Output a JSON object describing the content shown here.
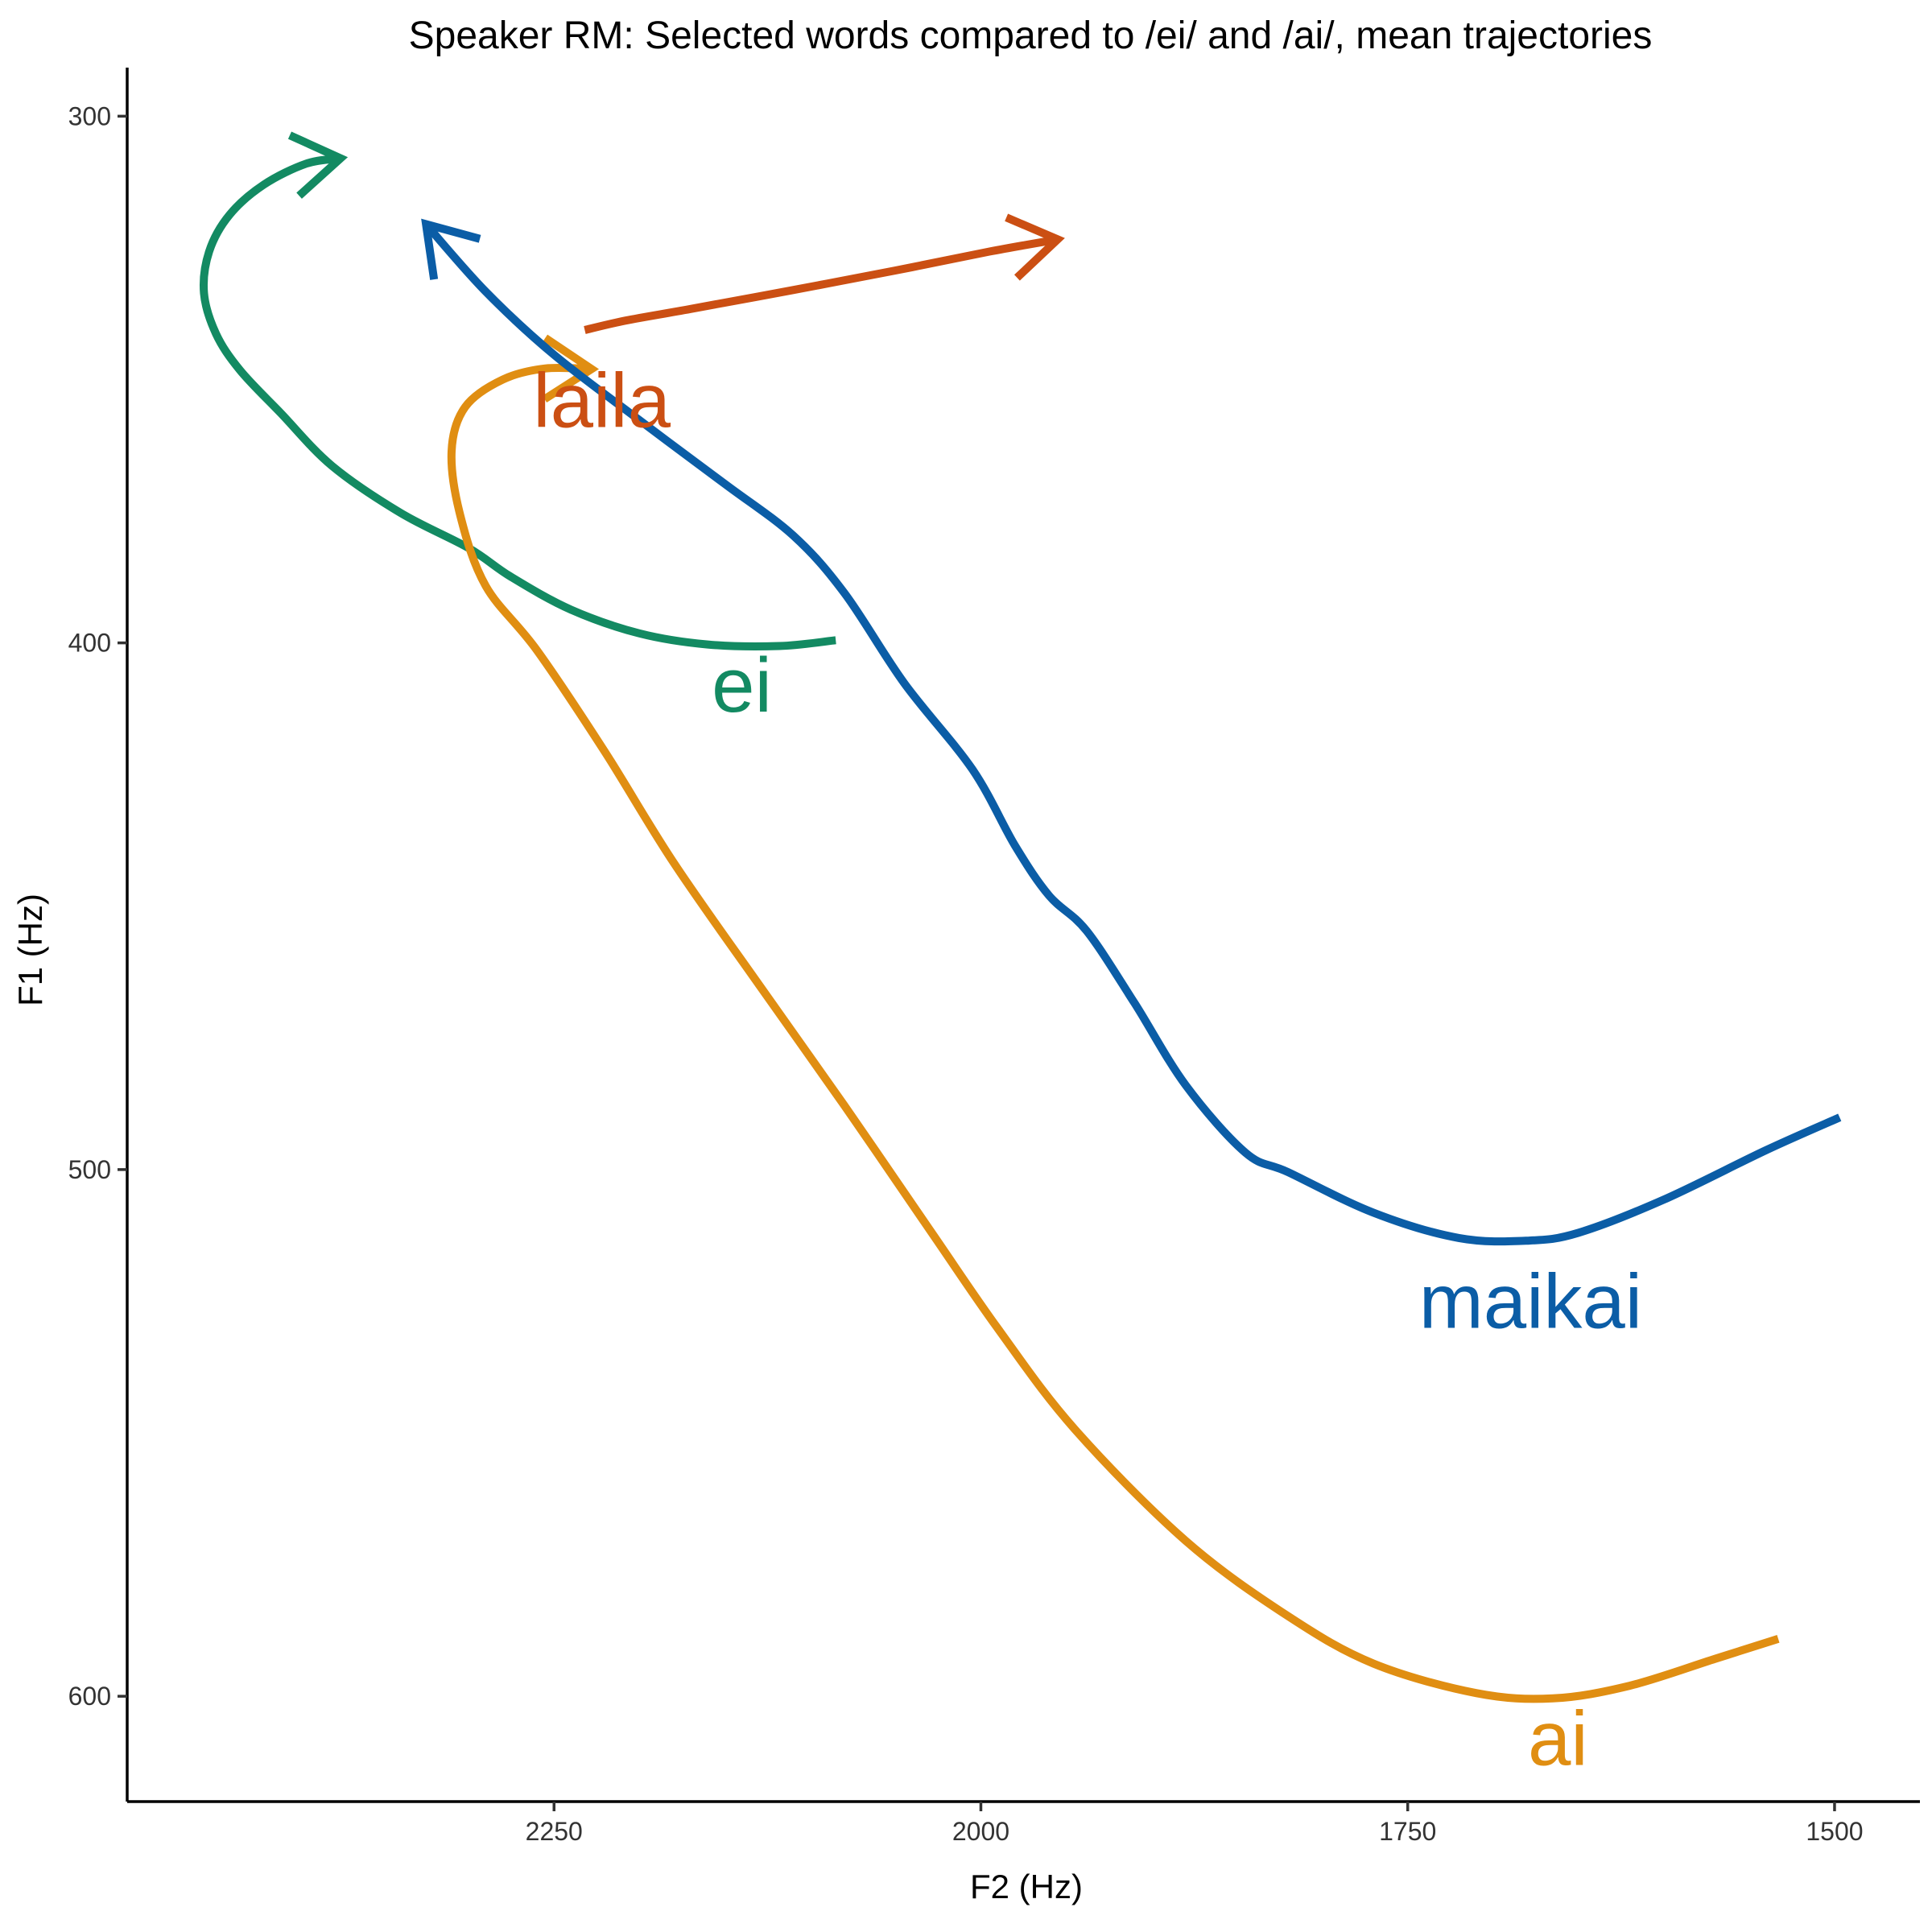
{
  "chart_data": {
    "type": "line",
    "title": "Speaker RM: Selected words compared to /ei/ and /ai/, mean trajectories",
    "xlabel": "F2 (Hz)",
    "ylabel": "F1 (Hz)",
    "x_reversed": true,
    "y_reversed": true,
    "xlim": [
      2500,
      1450
    ],
    "ylim": [
      292,
      620
    ],
    "xticks": [
      2250,
      2000,
      1750,
      1500
    ],
    "yticks": [
      300,
      400,
      500,
      600
    ],
    "grid": false,
    "legend": "none",
    "series": [
      {
        "name": "ei",
        "color": "#138a62",
        "label_at": [
          2140,
          408
        ],
        "x": [
          2085,
          2118,
          2160,
          2200,
          2240,
          2275,
          2300,
          2340,
          2380,
          2410,
          2434,
          2448,
          2455,
          2452,
          2440,
          2420,
          2395,
          2375
        ],
        "y": [
          399.5,
          400.6,
          400.3,
          398.2,
          393.7,
          387.5,
          382.0,
          375.3,
          366.4,
          356.4,
          348.2,
          341.3,
          333.6,
          325.7,
          318.7,
          313.0,
          309.0,
          308.0
        ]
      },
      {
        "name": "ai",
        "color": "#e08e12",
        "label_at": [
          1662,
          608
        ],
        "x": [
          1533,
          1570,
          1620,
          1665,
          1710,
          1770,
          1820,
          1880,
          1945,
          1990,
          2030,
          2080,
          2130,
          2180,
          2220,
          2260,
          2290,
          2305,
          2310,
          2302,
          2280,
          2255,
          2228
        ],
        "y": [
          589.1,
          592.9,
          598.0,
          600.4,
          599.4,
          593.8,
          584.8,
          570.5,
          549.3,
          530.2,
          511.4,
          487.8,
          464.9,
          441.7,
          420.8,
          401.4,
          389.2,
          375.7,
          363.6,
          355.2,
          350.0,
          347.9,
          348.0
        ]
      },
      {
        "name": "maikai",
        "color": "#0b5da6",
        "label_at": [
          1678,
          525
        ],
        "x": [
          1497,
          1540,
          1600,
          1650,
          1680,
          1720,
          1770,
          1820,
          1845,
          1880,
          1910,
          1938,
          1960,
          1980,
          2005,
          2045,
          2080,
          2110,
          2150,
          2200,
          2250,
          2290,
          2325
        ],
        "y": [
          490.1,
          496.3,
          505.7,
          512.0,
          513.5,
          513.0,
          508.2,
          500.5,
          496.8,
          484.0,
          468.4,
          454.7,
          448.0,
          438.5,
          424.0,
          407.6,
          390.5,
          379.6,
          369.8,
          357.7,
          345.3,
          333.3,
          320.5
        ]
      },
      {
        "name": "laila",
        "color": "#cb4f13",
        "label_at": [
          2222,
          354
        ],
        "x": [
          2232,
          2208,
          2170,
          2110,
          2050,
          1995,
          1955
        ],
        "y": [
          340.6,
          338.8,
          336.6,
          333.0,
          329.3,
          325.7,
          323.4
        ]
      }
    ]
  }
}
